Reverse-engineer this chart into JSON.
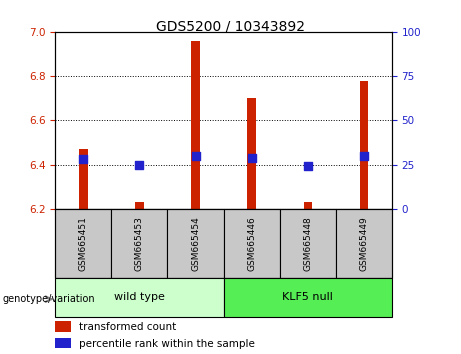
{
  "title": "GDS5200 / 10343892",
  "categories": [
    "GSM665451",
    "GSM665453",
    "GSM665454",
    "GSM665446",
    "GSM665448",
    "GSM665449"
  ],
  "transformed_count": [
    6.47,
    6.23,
    6.96,
    6.7,
    6.23,
    6.78
  ],
  "percentile_rank": [
    28,
    25,
    30,
    29,
    24,
    30
  ],
  "bar_bottom": 6.2,
  "ylim_left": [
    6.2,
    7.0
  ],
  "ylim_right": [
    0,
    100
  ],
  "yticks_left": [
    6.2,
    6.4,
    6.6,
    6.8,
    7.0
  ],
  "yticks_right": [
    0,
    25,
    50,
    75,
    100
  ],
  "bar_color": "#cc2200",
  "dot_color": "#2222cc",
  "wild_type_color": "#ccffcc",
  "klf5_null_color": "#55ee55",
  "tick_label_color_left": "#cc2200",
  "tick_label_color_right": "#2222cc",
  "bar_width": 0.15,
  "dot_size": 40,
  "legend_items": [
    "transformed count",
    "percentile rank within the sample"
  ],
  "legend_colors": [
    "#cc2200",
    "#2222cc"
  ],
  "genotype_label": "genotype/variation",
  "group_names": [
    "wild type",
    "KLF5 null"
  ],
  "sample_label_bg": "#c8c8c8",
  "title_fontsize": 10,
  "axis_fontsize": 7.5,
  "legend_fontsize": 7.5,
  "group_fontsize": 8
}
